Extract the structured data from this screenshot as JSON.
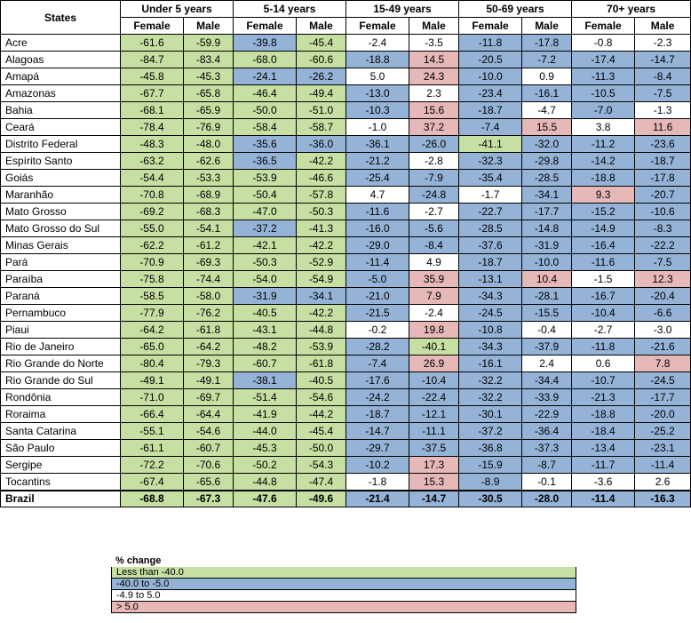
{
  "header": {
    "states_label": "States",
    "groups": [
      "Under 5 years",
      "5-14 years",
      "15-49 years",
      "50-69 years",
      "70+ years"
    ],
    "sex_female": "Female",
    "sex_male": "Male"
  },
  "rows": [
    {
      "state": "Acre",
      "values": [
        "-61.6",
        "-59.9",
        "-39.8",
        "-45.4",
        "-2.4",
        "-3.5",
        "-11.8",
        "-17.8",
        "-0.8",
        "-2.3"
      ],
      "colors": [
        "g",
        "g",
        "b",
        "g",
        "w",
        "w",
        "b",
        "b",
        "w",
        "w"
      ]
    },
    {
      "state": "Alagoas",
      "values": [
        "-84.7",
        "-83.4",
        "-68.0",
        "-60.6",
        "-18.8",
        "14.5",
        "-20.5",
        "-7.2",
        "-17.4",
        "-14.7"
      ],
      "colors": [
        "g",
        "g",
        "g",
        "g",
        "b",
        "p",
        "b",
        "b",
        "b",
        "b"
      ]
    },
    {
      "state": "Amapá",
      "values": [
        "-45.8",
        "-45.3",
        "-24.1",
        "-26.2",
        "5.0",
        "24.3",
        "-10.0",
        "0.9",
        "-11.3",
        "-8.4"
      ],
      "colors": [
        "g",
        "g",
        "b",
        "b",
        "w",
        "p",
        "b",
        "w",
        "b",
        "b"
      ]
    },
    {
      "state": "Amazonas",
      "values": [
        "-67.7",
        "-65.8",
        "-46.4",
        "-49.4",
        "-13.0",
        "2.3",
        "-23.4",
        "-16.1",
        "-10.5",
        "-7.5"
      ],
      "colors": [
        "g",
        "g",
        "g",
        "g",
        "b",
        "w",
        "b",
        "b",
        "b",
        "b"
      ]
    },
    {
      "state": "Bahia",
      "values": [
        "-68.1",
        "-65.9",
        "-50.0",
        "-51.0",
        "-10.3",
        "15.6",
        "-18.7",
        "-4.7",
        "-7.0",
        "-1.3"
      ],
      "colors": [
        "g",
        "g",
        "g",
        "g",
        "b",
        "p",
        "b",
        "w",
        "b",
        "w"
      ]
    },
    {
      "state": "Ceará",
      "values": [
        "-78.4",
        "-76.9",
        "-58.4",
        "-58.7",
        "-1.0",
        "37.2",
        "-7.4",
        "15.5",
        "3.8",
        "11.6"
      ],
      "colors": [
        "g",
        "g",
        "g",
        "g",
        "w",
        "p",
        "b",
        "p",
        "w",
        "p"
      ]
    },
    {
      "state": "Distrito Federal",
      "values": [
        "-48.3",
        "-48.0",
        "-35.6",
        "-36.0",
        "-36.1",
        "-26.0",
        "-41.1",
        "-32.0",
        "-11.2",
        "-23.6"
      ],
      "colors": [
        "g",
        "g",
        "b",
        "b",
        "b",
        "b",
        "g",
        "b",
        "b",
        "b"
      ]
    },
    {
      "state": "Espírito Santo",
      "values": [
        "-63.2",
        "-62.6",
        "-36.5",
        "-42.2",
        "-21.2",
        "-2.8",
        "-32.3",
        "-29.8",
        "-14.2",
        "-18.7"
      ],
      "colors": [
        "g",
        "g",
        "b",
        "g",
        "b",
        "w",
        "b",
        "b",
        "b",
        "b"
      ]
    },
    {
      "state": "Goiás",
      "values": [
        "-54.4",
        "-53.3",
        "-53.9",
        "-46.6",
        "-25.4",
        "-7.9",
        "-35.4",
        "-28.5",
        "-18.8",
        "-17.8"
      ],
      "colors": [
        "g",
        "g",
        "g",
        "g",
        "b",
        "b",
        "b",
        "b",
        "b",
        "b"
      ]
    },
    {
      "state": "Maranhão",
      "values": [
        "-70.8",
        "-68.9",
        "-50.4",
        "-57.8",
        "4.7",
        "-24.8",
        "-1.7",
        "-34.1",
        "9.3",
        "-20.7"
      ],
      "colors": [
        "g",
        "g",
        "g",
        "g",
        "w",
        "b",
        "w",
        "b",
        "p",
        "b"
      ]
    },
    {
      "state": "Mato Grosso",
      "values": [
        "-69.2",
        "-68.3",
        "-47.0",
        "-50.3",
        "-11.6",
        "-2.7",
        "-22.7",
        "-17.7",
        "-15.2",
        "-10.6"
      ],
      "colors": [
        "g",
        "g",
        "g",
        "g",
        "b",
        "w",
        "b",
        "b",
        "b",
        "b"
      ]
    },
    {
      "state": "Mato Grosso do Sul",
      "values": [
        "-55.0",
        "-54.1",
        "-37.2",
        "-41.3",
        "-16.0",
        "-5.6",
        "-28.5",
        "-14.8",
        "-14.9",
        "-8.3"
      ],
      "colors": [
        "g",
        "g",
        "b",
        "g",
        "b",
        "b",
        "b",
        "b",
        "b",
        "b"
      ]
    },
    {
      "state": "Minas Gerais",
      "values": [
        "-62.2",
        "-61.2",
        "-42.1",
        "-42.2",
        "-29.0",
        "-8.4",
        "-37.6",
        "-31.9",
        "-16.4",
        "-22.2"
      ],
      "colors": [
        "g",
        "g",
        "g",
        "g",
        "b",
        "b",
        "b",
        "b",
        "b",
        "b"
      ]
    },
    {
      "state": "Pará",
      "values": [
        "-70.9",
        "-69.3",
        "-50.3",
        "-52.9",
        "-11.4",
        "4.9",
        "-18.7",
        "-10.0",
        "-11.6",
        "-7.5"
      ],
      "colors": [
        "g",
        "g",
        "g",
        "g",
        "b",
        "w",
        "b",
        "b",
        "b",
        "b"
      ]
    },
    {
      "state": "Paraíba",
      "values": [
        "-75.8",
        "-74.4",
        "-54.0",
        "-54.9",
        "-5.0",
        "35.9",
        "-13.1",
        "10.4",
        "-1.5",
        "12.3"
      ],
      "colors": [
        "g",
        "g",
        "g",
        "g",
        "b",
        "p",
        "b",
        "p",
        "w",
        "p"
      ]
    },
    {
      "state": "Paraná",
      "values": [
        "-58.5",
        "-58.0",
        "-31.9",
        "-34.1",
        "-21.0",
        "7.9",
        "-34.3",
        "-28.1",
        "-16.7",
        "-20.4"
      ],
      "colors": [
        "g",
        "g",
        "b",
        "b",
        "b",
        "p",
        "b",
        "b",
        "b",
        "b"
      ]
    },
    {
      "state": "Pernambuco",
      "values": [
        "-77.9",
        "-76.2",
        "-40.5",
        "-42.2",
        "-21.5",
        "-2.4",
        "-24.5",
        "-15.5",
        "-10.4",
        "-6.6"
      ],
      "colors": [
        "g",
        "g",
        "g",
        "g",
        "b",
        "w",
        "b",
        "b",
        "b",
        "b"
      ]
    },
    {
      "state": "Piaui",
      "values": [
        "-64.2",
        "-61.8",
        "-43.1",
        "-44.8",
        "-0.2",
        "19.8",
        "-10.8",
        "-0.4",
        "-2.7",
        "-3.0"
      ],
      "colors": [
        "g",
        "g",
        "g",
        "g",
        "w",
        "p",
        "b",
        "w",
        "w",
        "w"
      ]
    },
    {
      "state": "Rio de Janeiro",
      "values": [
        "-65.0",
        "-64.2",
        "-48.2",
        "-53.9",
        "-28.2",
        "-40.1",
        "-34.3",
        "-37.9",
        "-11.8",
        "-21.6"
      ],
      "colors": [
        "g",
        "g",
        "g",
        "g",
        "b",
        "g",
        "b",
        "b",
        "b",
        "b"
      ]
    },
    {
      "state": "Rio Grande do Norte",
      "values": [
        "-80.4",
        "-79.3",
        "-60.7",
        "-61.8",
        "-7.4",
        "26.9",
        "-16.1",
        "2.4",
        "0.6",
        "7.8"
      ],
      "colors": [
        "g",
        "g",
        "g",
        "g",
        "b",
        "p",
        "b",
        "w",
        "w",
        "p"
      ]
    },
    {
      "state": "Rio Grande do Sul",
      "values": [
        "-49.1",
        "-49.1",
        "-38.1",
        "-40.5",
        "-17.6",
        "-10.4",
        "-32.2",
        "-34.4",
        "-10.7",
        "-24.5"
      ],
      "colors": [
        "g",
        "g",
        "b",
        "g",
        "b",
        "b",
        "b",
        "b",
        "b",
        "b"
      ]
    },
    {
      "state": "Rondônia",
      "values": [
        "-71.0",
        "-69.7",
        "-51.4",
        "-54.6",
        "-24.2",
        "-22.4",
        "-32.2",
        "-33.9",
        "-21.3",
        "-17.7"
      ],
      "colors": [
        "g",
        "g",
        "g",
        "g",
        "b",
        "b",
        "b",
        "b",
        "b",
        "b"
      ]
    },
    {
      "state": "Roraima",
      "values": [
        "-66.4",
        "-64.4",
        "-41.9",
        "-44.2",
        "-18.7",
        "-12.1",
        "-30.1",
        "-22.9",
        "-18.8",
        "-20.0"
      ],
      "colors": [
        "g",
        "g",
        "g",
        "g",
        "b",
        "b",
        "b",
        "b",
        "b",
        "b"
      ]
    },
    {
      "state": "Santa Catarina",
      "values": [
        "-55.1",
        "-54.6",
        "-44.0",
        "-45.4",
        "-14.7",
        "-11.1",
        "-37.2",
        "-36.4",
        "-18.4",
        "-25.2"
      ],
      "colors": [
        "g",
        "g",
        "g",
        "g",
        "b",
        "b",
        "b",
        "b",
        "b",
        "b"
      ]
    },
    {
      "state": "São Paulo",
      "values": [
        "-61.1",
        "-60.7",
        "-45.3",
        "-50.0",
        "-29.7",
        "-37.5",
        "-36.8",
        "-37.3",
        "-13.4",
        "-23.1"
      ],
      "colors": [
        "g",
        "g",
        "g",
        "g",
        "b",
        "b",
        "b",
        "b",
        "b",
        "b"
      ]
    },
    {
      "state": "Sergipe",
      "values": [
        "-72.2",
        "-70.6",
        "-50.2",
        "-54.3",
        "-10.2",
        "17.3",
        "-15.9",
        "-8.7",
        "-11.7",
        "-11.4"
      ],
      "colors": [
        "g",
        "g",
        "g",
        "g",
        "b",
        "p",
        "b",
        "b",
        "b",
        "b"
      ]
    },
    {
      "state": "Tocantins",
      "values": [
        "-67.4",
        "-65.6",
        "-44.8",
        "-47.4",
        "-1.8",
        "15.3",
        "-8.9",
        "-0.1",
        "-3.6",
        "2.6"
      ],
      "colors": [
        "g",
        "g",
        "g",
        "g",
        "w",
        "p",
        "b",
        "w",
        "w",
        "w"
      ]
    }
  ],
  "total": {
    "state": "Brazil",
    "values": [
      "-68.8",
      "-67.3",
      "-47.6",
      "-49.6",
      "-21.4",
      "-14.7",
      "-30.5",
      "-28.0",
      "-11.4",
      "-16.3"
    ],
    "colors": [
      "g",
      "g",
      "g",
      "g",
      "b",
      "b",
      "b",
      "b",
      "b",
      "b"
    ]
  },
  "legend": {
    "title": "% change",
    "items": [
      {
        "label": "Less than -40.0",
        "color": "#c6dfa2"
      },
      {
        "label": "-40.0 to -5.0",
        "color": "#95b3d7"
      },
      {
        "label": "-4.9 to 5.0",
        "color": "#ffffff"
      },
      {
        "label": "> 5.0",
        "color": "#e6b8b7"
      }
    ]
  }
}
